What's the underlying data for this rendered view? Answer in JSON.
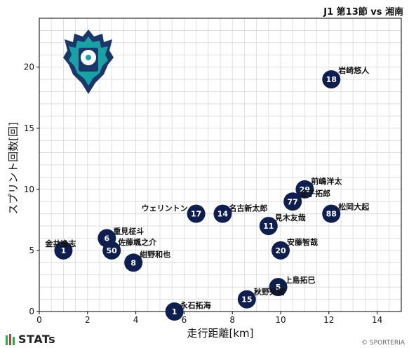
{
  "header": {
    "title": "J1 第13節 vs 湘南"
  },
  "footer": {
    "brand": "STATs",
    "copyright": "© SPORTERIA"
  },
  "icons": {
    "club_logo": "club-emblem-icon",
    "brand_mark": "bars-icon"
  },
  "colors": {
    "marker": "#0e1f4f",
    "marker_text": "#ffffff",
    "grid": "#d8d8d8",
    "axis": "#000000",
    "logo_teal": "#17a2a6",
    "logo_navy": "#1b3668",
    "brand_green": "#2fa84f",
    "brand_red": "#e0322f"
  },
  "chart_data": {
    "type": "scatter",
    "title": "",
    "xlabel": "走行距離[km]",
    "ylabel": "スプリント回数[回]",
    "xlim": [
      0,
      15
    ],
    "ylim": [
      0,
      24
    ],
    "xticks": [
      0,
      2,
      4,
      6,
      8,
      10,
      12,
      14
    ],
    "yticks": [
      0,
      5,
      10,
      15,
      20
    ],
    "grid": true,
    "points": [
      {
        "number": "18",
        "name": "岩崎悠人",
        "x": 12.1,
        "y": 19
      },
      {
        "number": "29",
        "name": "前嶋洋太",
        "x": 11.0,
        "y": 10
      },
      {
        "number": "77",
        "name": "金子拓郎",
        "x": 10.5,
        "y": 9
      },
      {
        "number": "88",
        "name": "松岡大起",
        "x": 12.1,
        "y": 8
      },
      {
        "number": "17",
        "name": "ウェリントン",
        "x": 6.5,
        "y": 8
      },
      {
        "number": "14",
        "name": "名古新太郎",
        "x": 7.6,
        "y": 8
      },
      {
        "number": "11",
        "name": "見木友哉",
        "x": 9.5,
        "y": 7
      },
      {
        "number": "20",
        "name": "安藤智哉",
        "x": 10.0,
        "y": 5
      },
      {
        "number": "6",
        "name": "重見柾斗",
        "x": 2.8,
        "y": 6
      },
      {
        "number": "50",
        "name": "佐藤颯之介",
        "x": 3.0,
        "y": 5
      },
      {
        "number": "8",
        "name": "紺野和也",
        "x": 3.9,
        "y": 4
      },
      {
        "number": "1",
        "name": "金井逸志",
        "x": 1.0,
        "y": 5
      },
      {
        "number": "5",
        "name": "上島拓巳",
        "x": 9.9,
        "y": 2
      },
      {
        "number": "15",
        "name": "秋野央樹",
        "x": 8.6,
        "y": 1
      },
      {
        "number": "1",
        "name": "永石拓海",
        "x": 5.6,
        "y": 0
      }
    ]
  }
}
